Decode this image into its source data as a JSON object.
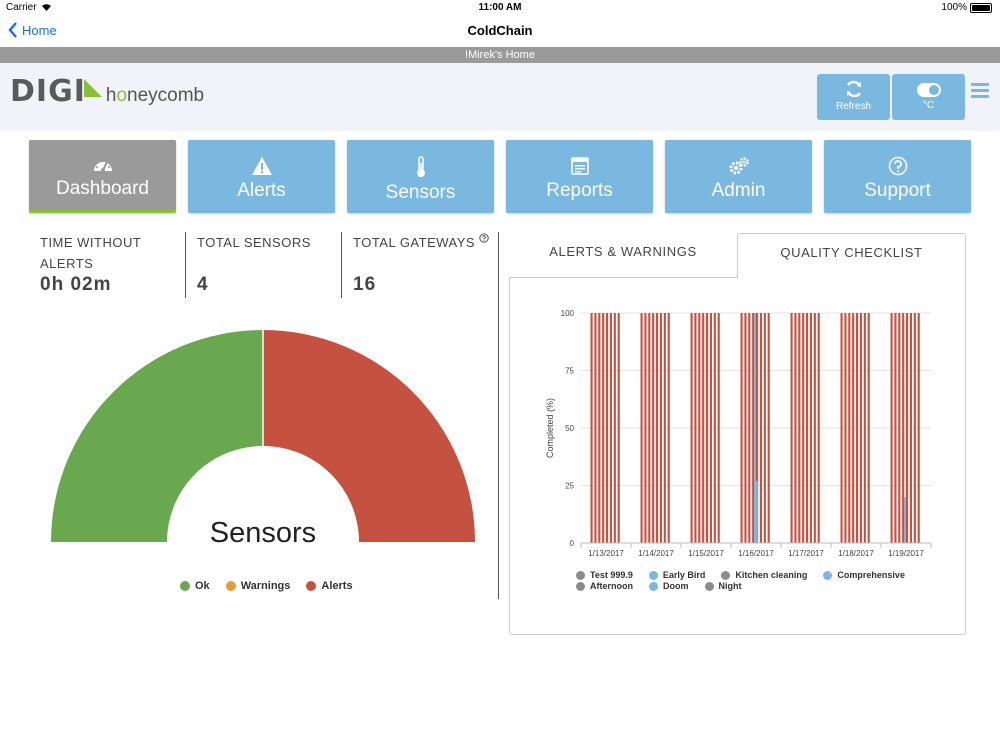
{
  "status": {
    "carrier": "Carrier",
    "time": "11:00 AM",
    "battery": "100%"
  },
  "nav": {
    "back": "Home",
    "title": "ColdChain"
  },
  "home_name": "!Mirek's Home",
  "logo": {
    "digi": "DIGI",
    "honey_pre": "h",
    "honey_o": "o",
    "honey_post": "neycomb"
  },
  "header_buttons": {
    "refresh": "Refresh",
    "unit": "°C"
  },
  "tabs": [
    {
      "label": "Dashboard",
      "icon": "speedometer-icon"
    },
    {
      "label": "Alerts",
      "icon": "warning-icon"
    },
    {
      "label": "Sensors",
      "icon": "thermometer-icon"
    },
    {
      "label": "Reports",
      "icon": "report-icon"
    },
    {
      "label": "Admin",
      "icon": "gears-icon"
    },
    {
      "label": "Support",
      "icon": "question-icon"
    }
  ],
  "stats": {
    "time_without_alerts": {
      "label_1": "TIME WITHOUT",
      "label_2": "ALERTS",
      "value": "0h 02m"
    },
    "total_sensors": {
      "label": "TOTAL SENSORS",
      "value": "4"
    },
    "total_gateways": {
      "label": "TOTAL GATEWAYS",
      "value": "16"
    }
  },
  "gauge": {
    "center_label": "Sensors",
    "ok": 2,
    "warnings": 0,
    "alerts": 2,
    "legend": {
      "ok": "Ok",
      "warnings": "Warnings",
      "alerts": "Alerts"
    },
    "colors": {
      "ok": "#6aa84f",
      "warnings": "#e69a3c",
      "alerts": "#c55140"
    }
  },
  "chart_tabs": {
    "alerts": "ALERTS & WARNINGS",
    "quality": "QUALITY CHECKLIST"
  },
  "chart_data": {
    "type": "bar",
    "ylabel": "Completed (%)",
    "ylim": [
      0,
      100
    ],
    "yticks": [
      0,
      25,
      50,
      75,
      100
    ],
    "categories": [
      "1/13/2017",
      "1/14/2017",
      "1/15/2017",
      "1/16/2017",
      "1/17/2017",
      "1/18/2017",
      "1/19/2017"
    ],
    "bars_per_category": 8,
    "bar_color": "#c55140",
    "overlay_color": "#7ab8df",
    "overlays": [
      {
        "category": "1/16/2017",
        "values": [
          100,
          27
        ]
      },
      {
        "category": "1/19/2017",
        "values": [
          20
        ]
      }
    ],
    "legend": [
      {
        "name": "Test 999.9",
        "color": "#8c8c8c"
      },
      {
        "name": "Early Bird",
        "color": "#7ab8df"
      },
      {
        "name": "Kitchen cleaning",
        "color": "#8c8c8c"
      },
      {
        "name": "Comprehensive",
        "color": "#7ab8df"
      },
      {
        "name": "Afternoon",
        "color": "#8c8c8c"
      },
      {
        "name": "Doom",
        "color": "#7ab8df"
      },
      {
        "name": "Night",
        "color": "#8c8c8c"
      }
    ]
  }
}
